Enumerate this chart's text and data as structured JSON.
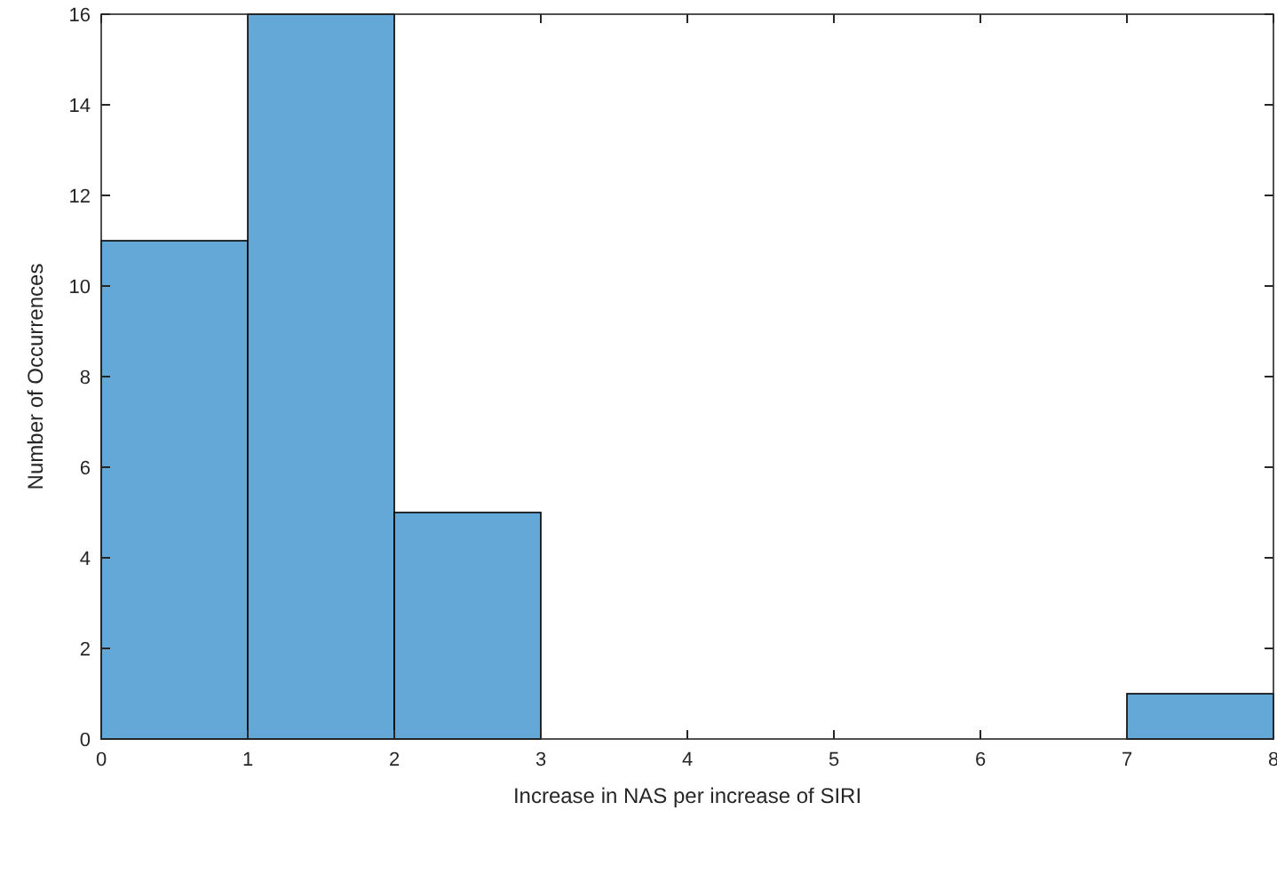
{
  "chart_data": {
    "type": "histogram",
    "xlabel": "Increase in NAS per increase of SIRI",
    "ylabel": "Number of Occurrences",
    "bins": [
      0,
      1,
      2,
      3,
      4,
      5,
      6,
      7,
      8
    ],
    "values": [
      11,
      16,
      5,
      0,
      0,
      0,
      0,
      1
    ],
    "color": "#64a8d8",
    "xlim": [
      0,
      8
    ],
    "xticks": [
      0,
      1,
      2,
      3,
      4,
      5,
      6,
      7,
      8
    ],
    "ylim": [
      0,
      16
    ],
    "yticks": [
      0,
      2,
      4,
      6,
      8,
      10,
      12,
      14,
      16
    ],
    "grid": false
  }
}
